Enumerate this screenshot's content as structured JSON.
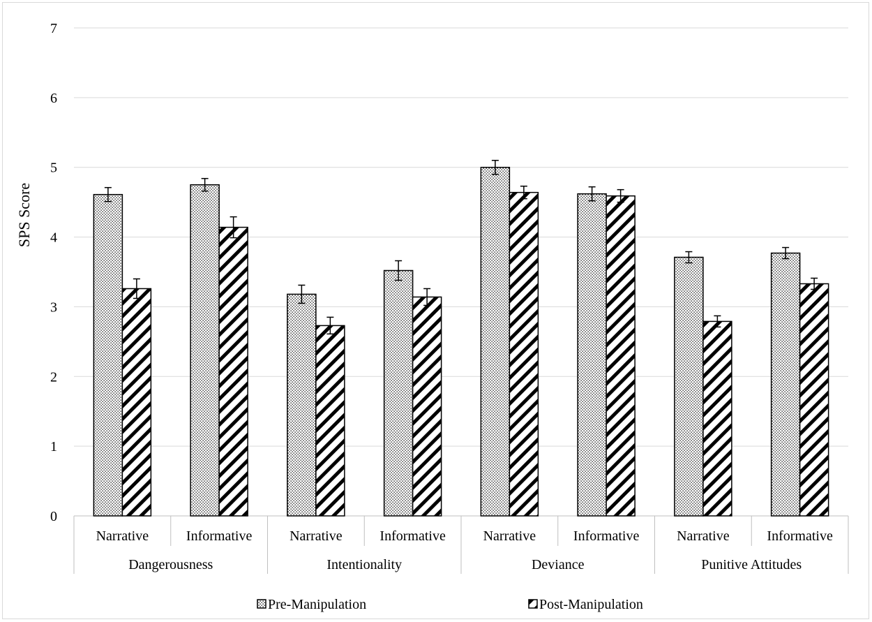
{
  "chart_data": {
    "type": "bar",
    "title": "",
    "xlabel": "",
    "ylabel": "SPS Score",
    "ylim": [
      0,
      7
    ],
    "yticks": [
      0,
      1,
      2,
      3,
      4,
      5,
      6,
      7
    ],
    "grid": true,
    "legend_position": "bottom",
    "groups": [
      {
        "label": "Dangerousness",
        "categories": [
          "Narrative",
          "Informative"
        ]
      },
      {
        "label": "Intentionality",
        "categories": [
          "Narrative",
          "Informative"
        ]
      },
      {
        "label": "Deviance",
        "categories": [
          "Narrative",
          "Informative"
        ]
      },
      {
        "label": "Punitive Attitudes",
        "categories": [
          "Narrative",
          "Informative"
        ]
      }
    ],
    "categories": [
      "Narrative",
      "Informative",
      "Narrative",
      "Informative",
      "Narrative",
      "Informative",
      "Narrative",
      "Informative"
    ],
    "series": [
      {
        "name": "Pre-Manipulation",
        "pattern": "dots",
        "values": [
          4.61,
          4.75,
          3.18,
          3.52,
          5.0,
          4.62,
          3.71,
          3.77
        ],
        "errors": [
          0.1,
          0.09,
          0.13,
          0.14,
          0.1,
          0.1,
          0.08,
          0.08
        ]
      },
      {
        "name": "Post-Manipulation",
        "pattern": "diagonal",
        "values": [
          3.26,
          4.14,
          2.73,
          3.14,
          4.64,
          4.59,
          2.79,
          3.33
        ],
        "errors": [
          0.14,
          0.15,
          0.12,
          0.12,
          0.09,
          0.09,
          0.08,
          0.08
        ]
      }
    ]
  }
}
